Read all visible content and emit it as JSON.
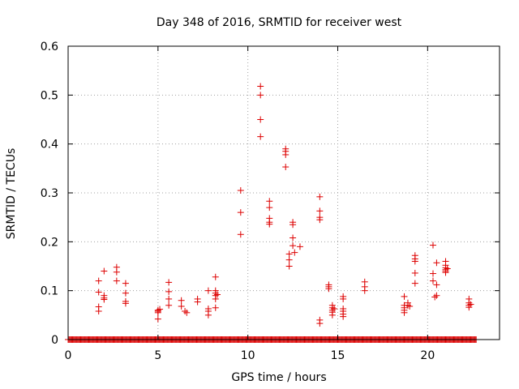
{
  "chart_data": {
    "type": "scatter",
    "title": "Day 348 of 2016, SRMTID for receiver west",
    "xlabel": "GPS time / hours",
    "ylabel": "SRMTID / TECUs",
    "xlim": [
      0,
      24
    ],
    "ylim": [
      0,
      0.6
    ],
    "xticks": [
      0,
      5,
      10,
      15,
      20
    ],
    "yticks": [
      0,
      0.1,
      0.2,
      0.3,
      0.4,
      0.5,
      0.6
    ],
    "xtick_labels": [
      "0",
      "5",
      "10",
      "15",
      "20"
    ],
    "ytick_labels": [
      "0",
      "0.1",
      "0.2",
      "0.3",
      "0.4",
      "0.5",
      "0.6"
    ],
    "grid": true,
    "marker": "+",
    "marker_color": "#dd0000",
    "baseline": {
      "y": 0,
      "x_start": 0,
      "x_end": 22.7,
      "step": 0.05
    },
    "points": [
      [
        1.7,
        0.12
      ],
      [
        1.7,
        0.097
      ],
      [
        1.7,
        0.067
      ],
      [
        1.7,
        0.058
      ],
      [
        2.0,
        0.14
      ],
      [
        2.0,
        0.09
      ],
      [
        2.0,
        0.085
      ],
      [
        2.0,
        0.082
      ],
      [
        2.7,
        0.148
      ],
      [
        2.7,
        0.138
      ],
      [
        2.7,
        0.12
      ],
      [
        3.2,
        0.115
      ],
      [
        3.2,
        0.095
      ],
      [
        3.2,
        0.078
      ],
      [
        3.2,
        0.074
      ],
      [
        5.0,
        0.06
      ],
      [
        5.0,
        0.058
      ],
      [
        5.0,
        0.055
      ],
      [
        5.0,
        0.042
      ],
      [
        5.1,
        0.062
      ],
      [
        5.6,
        0.117
      ],
      [
        5.6,
        0.098
      ],
      [
        5.6,
        0.083
      ],
      [
        5.6,
        0.07
      ],
      [
        6.3,
        0.08
      ],
      [
        6.3,
        0.068
      ],
      [
        6.5,
        0.058
      ],
      [
        6.6,
        0.055
      ],
      [
        7.2,
        0.083
      ],
      [
        7.2,
        0.077
      ],
      [
        7.8,
        0.1
      ],
      [
        7.8,
        0.063
      ],
      [
        7.8,
        0.058
      ],
      [
        7.8,
        0.05
      ],
      [
        8.2,
        0.128
      ],
      [
        8.2,
        0.1
      ],
      [
        8.2,
        0.095
      ],
      [
        8.2,
        0.09
      ],
      [
        8.2,
        0.083
      ],
      [
        8.2,
        0.065
      ],
      [
        8.3,
        0.092
      ],
      [
        9.6,
        0.305
      ],
      [
        9.6,
        0.26
      ],
      [
        9.6,
        0.215
      ],
      [
        10.7,
        0.518
      ],
      [
        10.7,
        0.5
      ],
      [
        10.7,
        0.45
      ],
      [
        10.7,
        0.415
      ],
      [
        11.2,
        0.283
      ],
      [
        11.2,
        0.27
      ],
      [
        11.2,
        0.248
      ],
      [
        11.2,
        0.24
      ],
      [
        11.2,
        0.236
      ],
      [
        12.1,
        0.39
      ],
      [
        12.1,
        0.385
      ],
      [
        12.1,
        0.378
      ],
      [
        12.1,
        0.353
      ],
      [
        12.3,
        0.175
      ],
      [
        12.3,
        0.163
      ],
      [
        12.3,
        0.15
      ],
      [
        12.5,
        0.24
      ],
      [
        12.5,
        0.235
      ],
      [
        12.5,
        0.208
      ],
      [
        12.5,
        0.192
      ],
      [
        12.6,
        0.178
      ],
      [
        12.9,
        0.19
      ],
      [
        14.0,
        0.292
      ],
      [
        14.0,
        0.263
      ],
      [
        14.0,
        0.25
      ],
      [
        14.0,
        0.245
      ],
      [
        14.0,
        0.04
      ],
      [
        14.0,
        0.033
      ],
      [
        14.5,
        0.112
      ],
      [
        14.5,
        0.108
      ],
      [
        14.5,
        0.104
      ],
      [
        14.7,
        0.07
      ],
      [
        14.7,
        0.065
      ],
      [
        14.7,
        0.06
      ],
      [
        14.7,
        0.056
      ],
      [
        14.7,
        0.05
      ],
      [
        14.8,
        0.063
      ],
      [
        15.3,
        0.088
      ],
      [
        15.3,
        0.083
      ],
      [
        15.3,
        0.063
      ],
      [
        15.3,
        0.058
      ],
      [
        15.3,
        0.052
      ],
      [
        15.3,
        0.047
      ],
      [
        16.5,
        0.118
      ],
      [
        16.5,
        0.108
      ],
      [
        16.5,
        0.1
      ],
      [
        18.7,
        0.088
      ],
      [
        18.7,
        0.07
      ],
      [
        18.7,
        0.065
      ],
      [
        18.7,
        0.06
      ],
      [
        18.7,
        0.055
      ],
      [
        18.9,
        0.075
      ],
      [
        18.9,
        0.07
      ],
      [
        19.0,
        0.068
      ],
      [
        19.3,
        0.172
      ],
      [
        19.3,
        0.165
      ],
      [
        19.3,
        0.16
      ],
      [
        19.3,
        0.136
      ],
      [
        19.3,
        0.115
      ],
      [
        20.3,
        0.193
      ],
      [
        20.3,
        0.135
      ],
      [
        20.3,
        0.12
      ],
      [
        20.4,
        0.087
      ],
      [
        20.5,
        0.157
      ],
      [
        20.5,
        0.112
      ],
      [
        20.5,
        0.09
      ],
      [
        21.0,
        0.16
      ],
      [
        21.0,
        0.152
      ],
      [
        21.0,
        0.147
      ],
      [
        21.0,
        0.143
      ],
      [
        21.0,
        0.14
      ],
      [
        21.0,
        0.137
      ],
      [
        21.1,
        0.145
      ],
      [
        22.3,
        0.083
      ],
      [
        22.3,
        0.075
      ],
      [
        22.3,
        0.07
      ],
      [
        22.3,
        0.066
      ],
      [
        22.4,
        0.072
      ]
    ]
  }
}
